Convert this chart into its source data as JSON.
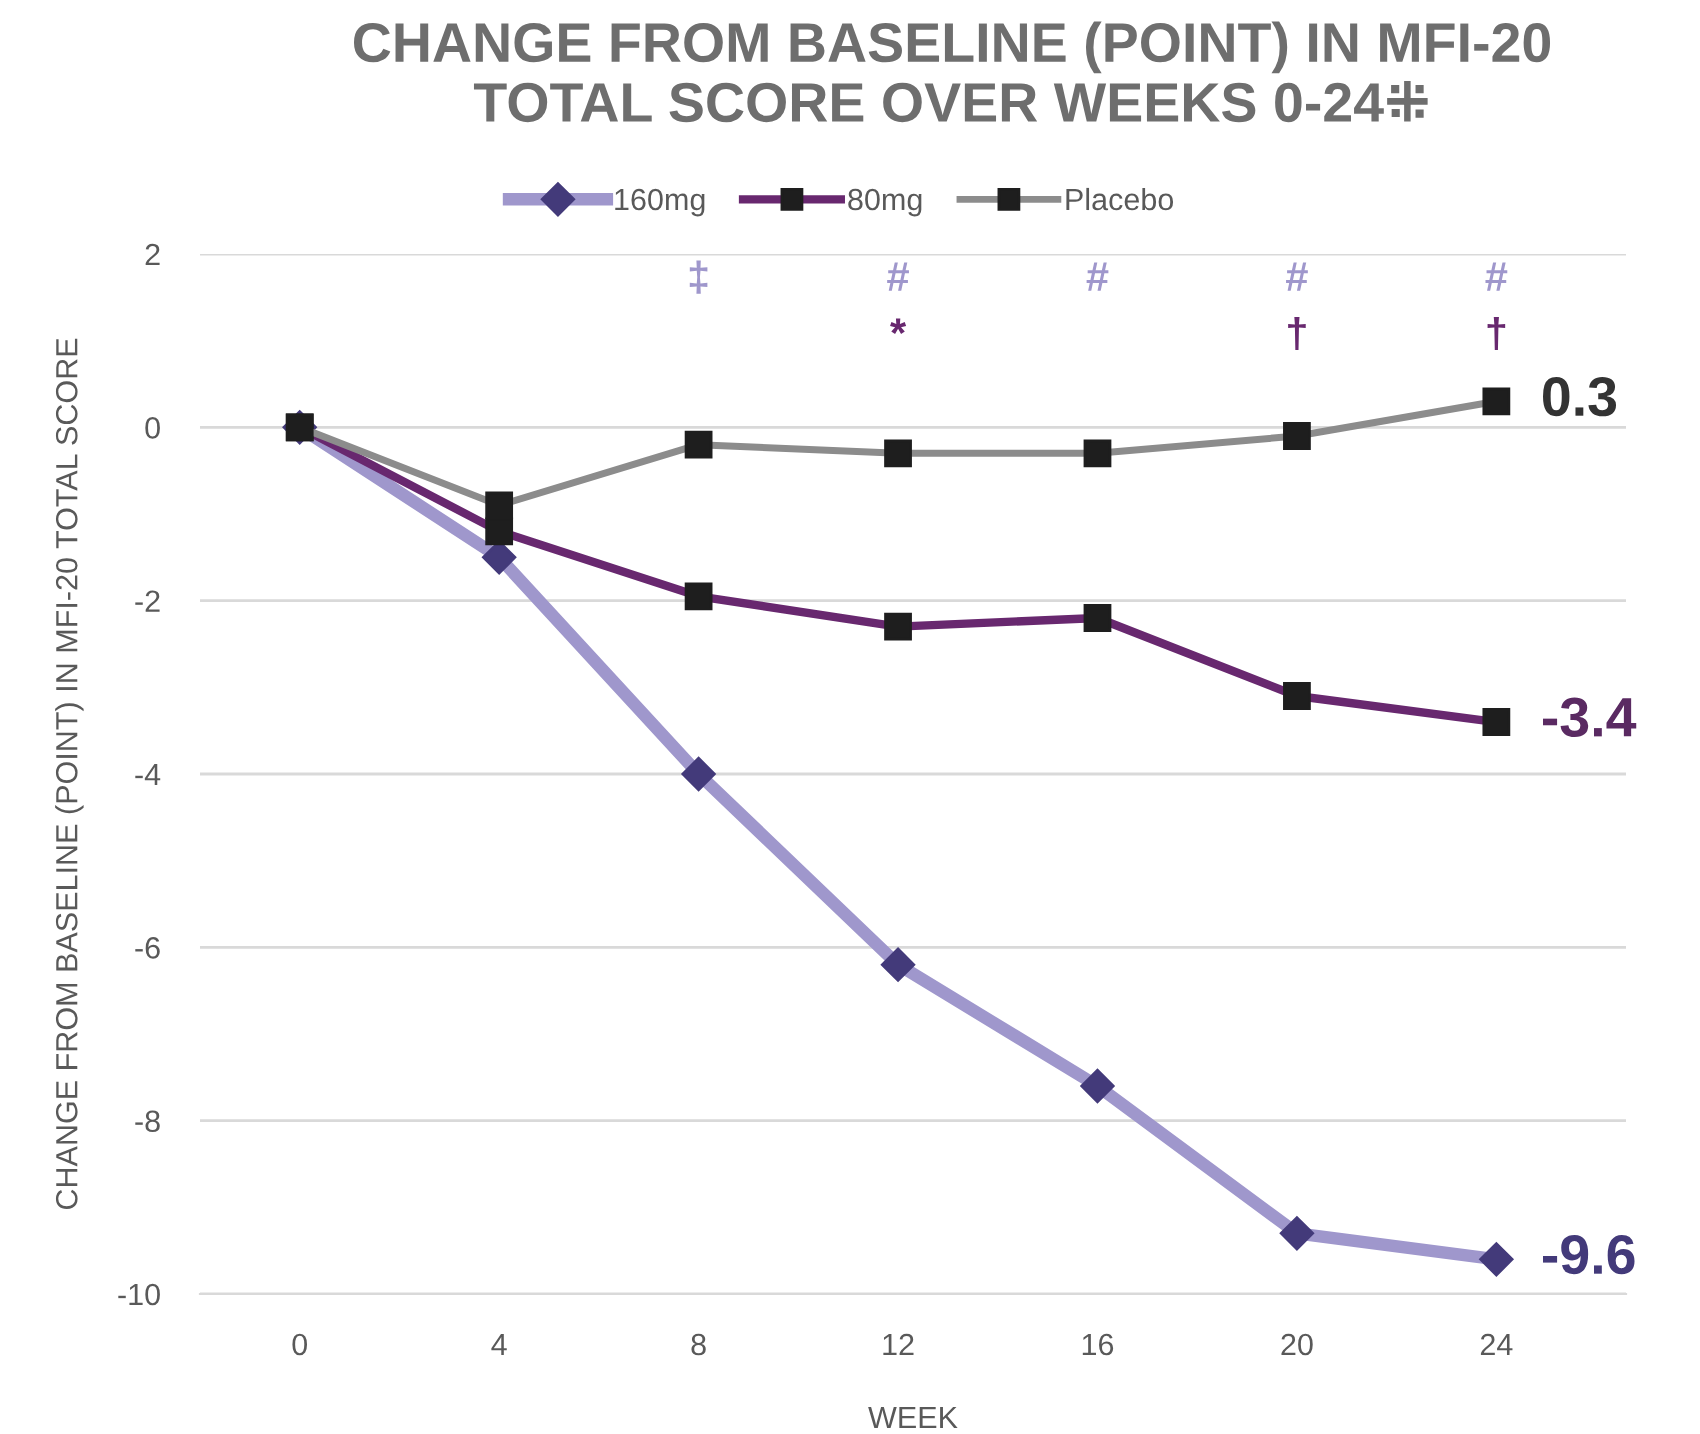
{
  "chart_data": {
    "type": "line",
    "title": "CHANGE FROM BASELINE (POINT) IN MFI-20\nTOTAL SCORE OVER WEEKS 0-24⁜",
    "xlabel": "WEEK",
    "ylabel": "CHANGE FROM BASELINE (POINT) IN MFI-20 TOTAL SCORE",
    "categories": [
      "0",
      "4",
      "8",
      "12",
      "16",
      "20",
      "24"
    ],
    "series": [
      {
        "name": "160mg",
        "color": "#9f97cc",
        "marker": "diamond",
        "values": [
          0,
          -1.5,
          -4.0,
          -6.2,
          -7.6,
          -9.3,
          -9.6
        ],
        "value_labels": [
          null,
          null,
          null,
          null,
          null,
          null,
          "-9.6"
        ]
      },
      {
        "name": "80mg",
        "color": "#68286f",
        "marker": "square",
        "values": [
          0,
          -1.2,
          -1.95,
          -2.3,
          -2.2,
          -3.1,
          -3.4
        ],
        "value_labels": [
          null,
          null,
          null,
          null,
          null,
          null,
          "-3.4"
        ]
      },
      {
        "name": "Placebo",
        "color": "#8c8c8c",
        "marker": "square",
        "values": [
          0,
          -0.9,
          -0.2,
          -0.3,
          -0.3,
          -0.1,
          0.3
        ],
        "value_labels": [
          null,
          null,
          null,
          null,
          null,
          null,
          "0.3"
        ]
      }
    ],
    "ylim": [
      -10,
      2
    ],
    "yticks": [
      -10,
      -8,
      -6,
      -4,
      -2,
      0,
      2
    ],
    "grid": "y",
    "legend": "top",
    "annotations": [
      "‡",
      "#",
      "#",
      "#",
      "#",
      "*",
      "†",
      "†"
    ]
  }
}
